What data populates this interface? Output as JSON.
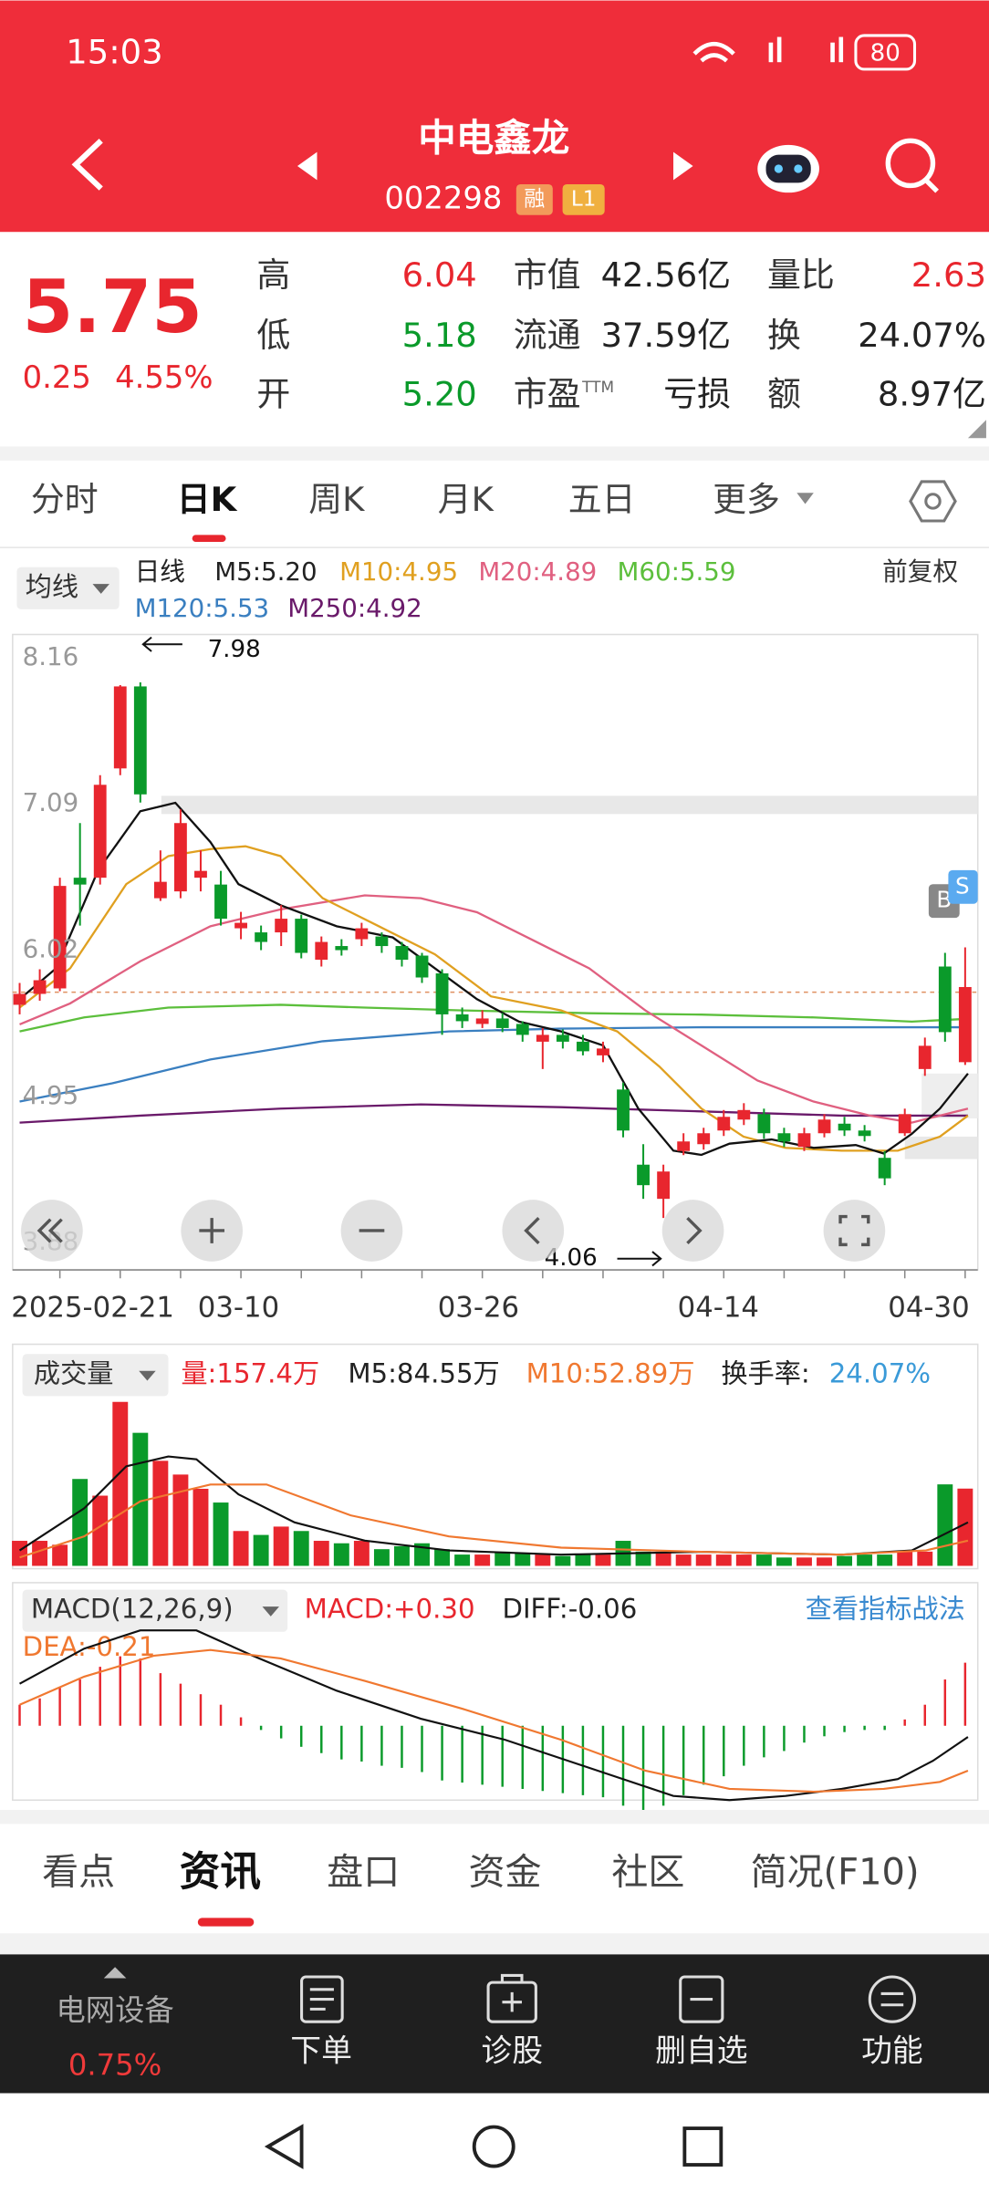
{
  "status": {
    "time": "15:03",
    "battery": "80"
  },
  "header": {
    "title": "中电鑫龙",
    "code": "002298",
    "badges": [
      "融",
      "L1"
    ]
  },
  "quote": {
    "price": "5.75",
    "change": "0.25",
    "percent": "4.55%",
    "col1": [
      {
        "label": "高",
        "value": "6.04"
      },
      {
        "label": "低",
        "value": "5.18"
      },
      {
        "label": "开",
        "value": "5.20"
      }
    ],
    "col2": [
      {
        "label": "市值",
        "value": "42.56亿"
      },
      {
        "label": "流通",
        "value": "37.59亿"
      },
      {
        "label": "市盈",
        "sup": "TTM",
        "value": "亏损"
      }
    ],
    "col3": [
      {
        "label": "量比",
        "value": "2.63"
      },
      {
        "label": "换",
        "value": "24.07%"
      },
      {
        "label": "额",
        "value": "8.97亿"
      }
    ]
  },
  "tabs": [
    "分时",
    "日K",
    "周K",
    "月K",
    "五日",
    "更多"
  ],
  "indicator": {
    "button": "均线",
    "period": "日线",
    "ma": [
      "M5:5.20",
      "M10:4.95",
      "M20:4.89",
      "M60:5.59",
      "M120:5.53",
      "M250:4.92"
    ],
    "adjust": "前复权"
  },
  "kline": {
    "type": "candlestick",
    "ylim": [
      3.68,
      8.33
    ],
    "yticks": [
      8.16,
      7.09,
      6.02,
      4.95,
      3.88
    ],
    "max_label": "7.98",
    "min_label": "4.06",
    "dates": [
      "2025-02-21",
      "03-10",
      "03-26",
      "04-14",
      "04-30"
    ],
    "up_color": "#e8262e",
    "down_color": "#0a9a2a",
    "open": [
      5.62,
      5.7,
      5.74,
      6.55,
      6.55,
      7.35,
      7.95,
      6.4,
      6.45,
      6.55,
      6.5,
      6.18,
      6.15,
      6.15,
      6.25,
      5.95,
      6.05,
      6.1,
      6.12,
      6.05,
      5.98,
      5.85,
      5.55,
      5.48,
      5.52,
      5.48,
      5.35,
      5.4,
      5.35,
      5.25,
      5.0,
      4.45,
      4.2,
      4.55,
      4.6,
      4.7,
      4.78,
      4.82,
      4.68,
      4.58,
      4.68,
      4.75,
      4.7,
      4.5,
      4.68,
      5.15,
      5.9,
      5.2
    ],
    "high": [
      5.78,
      5.88,
      6.55,
      6.95,
      7.3,
      7.96,
      7.98,
      6.75,
      7.05,
      6.75,
      6.6,
      6.3,
      6.2,
      6.35,
      6.28,
      6.12,
      6.1,
      6.22,
      6.15,
      6.08,
      6.0,
      5.88,
      5.6,
      5.58,
      5.56,
      5.5,
      5.45,
      5.44,
      5.4,
      5.35,
      5.05,
      4.6,
      4.45,
      4.68,
      4.72,
      4.85,
      4.9,
      4.86,
      4.72,
      4.72,
      4.82,
      4.8,
      4.74,
      4.55,
      4.86,
      5.38,
      6.0,
      6.04
    ],
    "low": [
      5.55,
      5.65,
      5.72,
      6.2,
      6.5,
      7.3,
      7.1,
      6.38,
      6.4,
      6.45,
      6.2,
      6.1,
      6.02,
      6.05,
      5.96,
      5.9,
      5.98,
      6.05,
      6.0,
      5.9,
      5.78,
      5.4,
      5.45,
      5.45,
      5.42,
      5.35,
      5.15,
      5.3,
      5.25,
      5.2,
      4.65,
      4.2,
      4.06,
      4.52,
      4.56,
      4.66,
      4.74,
      4.64,
      4.58,
      4.55,
      4.65,
      4.66,
      4.62,
      4.3,
      4.66,
      5.1,
      5.35,
      5.18
    ],
    "close": [
      5.7,
      5.8,
      6.49,
      6.5,
      7.23,
      7.95,
      7.16,
      6.52,
      6.95,
      6.6,
      6.25,
      6.22,
      6.08,
      6.25,
      6.0,
      6.08,
      6.02,
      6.18,
      6.05,
      5.95,
      5.82,
      5.55,
      5.5,
      5.52,
      5.45,
      5.4,
      5.4,
      5.35,
      5.28,
      5.3,
      4.7,
      4.3,
      4.4,
      4.62,
      4.68,
      4.8,
      4.85,
      4.68,
      4.62,
      4.68,
      4.78,
      4.7,
      4.66,
      4.35,
      4.82,
      5.32,
      5.42,
      5.75
    ]
  },
  "volume": {
    "button": "成交量",
    "labels": [
      "量:157.4万",
      "M5:84.55万",
      "M10:52.89万",
      "换手率:",
      "24.07%"
    ],
    "values": [
      51,
      51,
      43,
      177,
      143,
      334,
      271,
      214,
      186,
      157,
      129,
      71,
      63,
      80,
      71,
      51,
      46,
      51,
      34,
      40,
      46,
      34,
      23,
      23,
      29,
      26,
      23,
      20,
      23,
      23,
      51,
      29,
      29,
      23,
      23,
      23,
      23,
      23,
      17,
      17,
      17,
      20,
      23,
      23,
      29,
      29,
      166,
      157.4
    ]
  },
  "macd": {
    "button": "MACD(12,26,9)",
    "labels": [
      "MACD:+0.30",
      "DIFF:-0.06",
      "DEA:-0.21"
    ],
    "link": "查看指标战法",
    "values": [
      0.1,
      0.13,
      0.18,
      0.22,
      0.28,
      0.33,
      0.32,
      0.25,
      0.2,
      0.15,
      0.1,
      0.04,
      -0.02,
      -0.06,
      -0.1,
      -0.13,
      -0.16,
      -0.17,
      -0.19,
      -0.2,
      -0.22,
      -0.26,
      -0.27,
      -0.28,
      -0.29,
      -0.3,
      -0.31,
      -0.32,
      -0.33,
      -0.34,
      -0.38,
      -0.4,
      -0.38,
      -0.33,
      -0.28,
      -0.24,
      -0.19,
      -0.15,
      -0.12,
      -0.08,
      -0.05,
      -0.03,
      -0.02,
      -0.02,
      0.03,
      0.1,
      0.22,
      0.3
    ]
  },
  "bottom_tabs": [
    "看点",
    "资讯",
    "盘口",
    "资金",
    "社区",
    "简况(F10)"
  ],
  "nav": {
    "sector": "电网设备",
    "sector_change": "0.75%",
    "items": [
      "下单",
      "诊股",
      "删自选",
      "功能"
    ]
  }
}
